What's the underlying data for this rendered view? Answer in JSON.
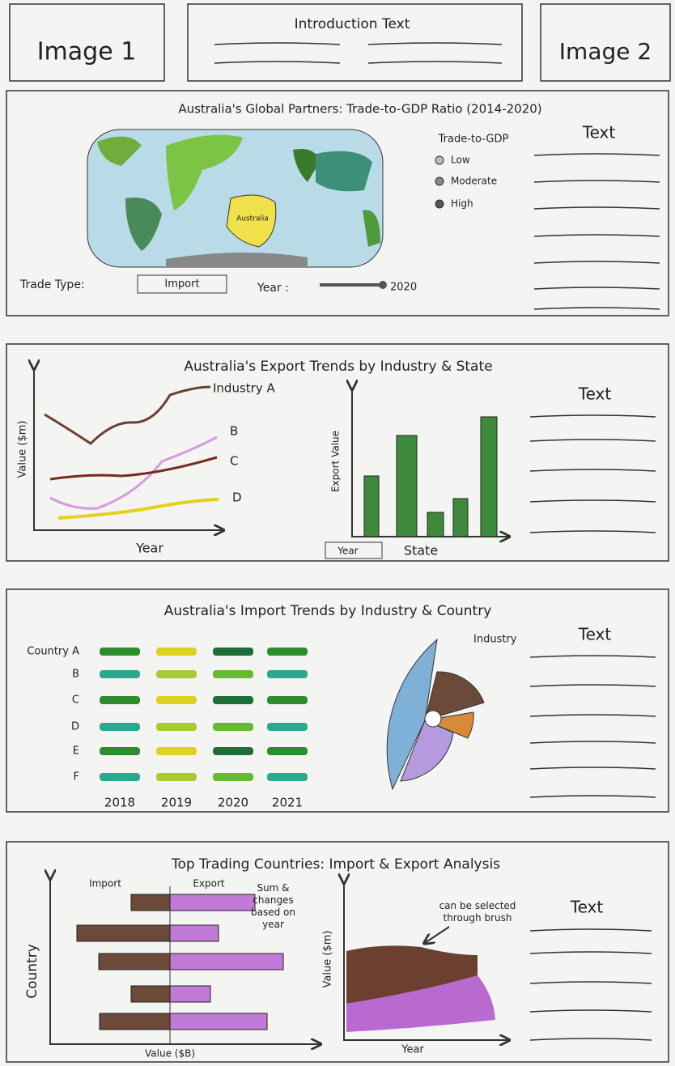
{
  "header": {
    "image_1": "Image 1",
    "introduction": "Introduction Text",
    "image_2": "Image 2"
  },
  "map_section": {
    "title": "Australia's Global Partners: Trade-to-GDP Ratio (2014-2020)",
    "legend_title": "Trade-to-GDP",
    "legend": [
      "Low",
      "Moderate",
      "High"
    ],
    "map_label": "Australia",
    "trade_type_label": "Trade Type:",
    "trade_type_value": "Import",
    "year_label": "Year :",
    "year_value": "2020",
    "text": "Text"
  },
  "export_section": {
    "title": "Australia's Export Trends by Industry & State",
    "line_chart": {
      "y_label": "Value ($m)",
      "x_label": "Year",
      "series": [
        "Industry A",
        "B",
        "C",
        "D"
      ]
    },
    "bar_chart": {
      "y_label": "Export Value",
      "x_label": "State",
      "dropdown": "Year"
    },
    "text": "Text"
  },
  "import_section": {
    "title": "Australia's Import Trends by Industry & Country",
    "rows": [
      "Country A",
      "B",
      "C",
      "D",
      "E",
      "F"
    ],
    "columns": [
      "2018",
      "2019",
      "2020",
      "2021"
    ],
    "pie_label": "Industry",
    "text": "Text"
  },
  "trading_section": {
    "title": "Top Trading Countries: Import & Export Analysis",
    "bar_chart": {
      "import_label": "Import",
      "export_label": "Export",
      "y_label": "Country",
      "x_label": "Value ($B)",
      "note": "Sum & changes based on year"
    },
    "area_chart": {
      "y_label": "Value ($m)",
      "x_label": "Year",
      "note": "can be selected through brush"
    },
    "text": "Text"
  }
}
